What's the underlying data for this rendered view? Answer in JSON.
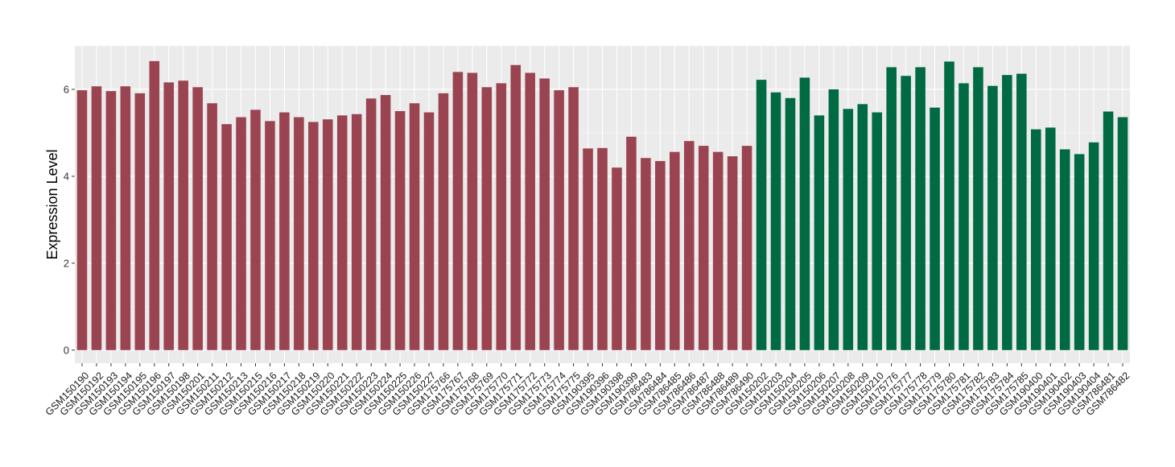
{
  "chart_data": {
    "type": "bar",
    "ylabel": "Expression Level",
    "xlabel": "",
    "ylim": [
      -0.3,
      7.0
    ],
    "yticks": [
      0,
      2,
      4,
      6
    ],
    "grid": true,
    "panel_background": "#ebebeb",
    "colors": {
      "group1": "#9b4451",
      "group2": "#006a43"
    },
    "categories": [
      "GSM150190",
      "GSM150192",
      "GSM150193",
      "GSM150194",
      "GSM150195",
      "GSM150196",
      "GSM150197",
      "GSM150198",
      "GSM150201",
      "GSM150211",
      "GSM150212",
      "GSM150213",
      "GSM150215",
      "GSM150216",
      "GSM150217",
      "GSM150218",
      "GSM150219",
      "GSM150220",
      "GSM150221",
      "GSM150222",
      "GSM150223",
      "GSM150224",
      "GSM150225",
      "GSM150226",
      "GSM150227",
      "GSM175766",
      "GSM175767",
      "GSM175768",
      "GSM175769",
      "GSM175770",
      "GSM175771",
      "GSM175772",
      "GSM175773",
      "GSM175774",
      "GSM175775",
      "GSM190395",
      "GSM190396",
      "GSM190398",
      "GSM190399",
      "GSM786483",
      "GSM786484",
      "GSM786485",
      "GSM786486",
      "GSM786487",
      "GSM786488",
      "GSM786489",
      "GSM786490",
      "GSM150202",
      "GSM150203",
      "GSM150204",
      "GSM150205",
      "GSM150206",
      "GSM150207",
      "GSM150208",
      "GSM150209",
      "GSM150210",
      "GSM175776",
      "GSM175777",
      "GSM175778",
      "GSM175779",
      "GSM175780",
      "GSM175781",
      "GSM175782",
      "GSM175783",
      "GSM175784",
      "GSM175785",
      "GSM190400",
      "GSM190401",
      "GSM190402",
      "GSM190403",
      "GSM190404",
      "GSM786481",
      "GSM786482"
    ],
    "values": [
      5.98,
      6.07,
      5.96,
      6.07,
      5.91,
      6.65,
      6.16,
      6.2,
      6.05,
      5.68,
      5.2,
      5.36,
      5.53,
      5.27,
      5.47,
      5.36,
      5.25,
      5.31,
      5.4,
      5.43,
      5.79,
      5.87,
      5.5,
      5.68,
      5.47,
      5.91,
      6.4,
      6.38,
      6.05,
      6.14,
      6.56,
      6.38,
      6.25,
      5.98,
      6.05,
      4.64,
      4.65,
      4.2,
      4.91,
      4.42,
      4.35,
      4.56,
      4.81,
      4.7,
      4.56,
      4.46,
      4.7,
      6.22,
      5.93,
      5.8,
      6.27,
      5.4,
      6.0,
      5.55,
      5.66,
      5.47,
      6.51,
      6.31,
      6.51,
      5.58,
      6.64,
      6.14,
      6.51,
      6.08,
      6.33,
      6.36,
      5.08,
      5.12,
      4.62,
      4.51,
      4.78,
      5.49,
      5.36
    ],
    "groups": [
      1,
      1,
      1,
      1,
      1,
      1,
      1,
      1,
      1,
      1,
      1,
      1,
      1,
      1,
      1,
      1,
      1,
      1,
      1,
      1,
      1,
      1,
      1,
      1,
      1,
      1,
      1,
      1,
      1,
      1,
      1,
      1,
      1,
      1,
      1,
      1,
      1,
      1,
      1,
      1,
      1,
      1,
      1,
      1,
      1,
      1,
      1,
      2,
      2,
      2,
      2,
      2,
      2,
      2,
      2,
      2,
      2,
      2,
      2,
      2,
      2,
      2,
      2,
      2,
      2,
      2,
      2,
      2,
      2,
      2,
      2,
      2,
      2
    ]
  }
}
